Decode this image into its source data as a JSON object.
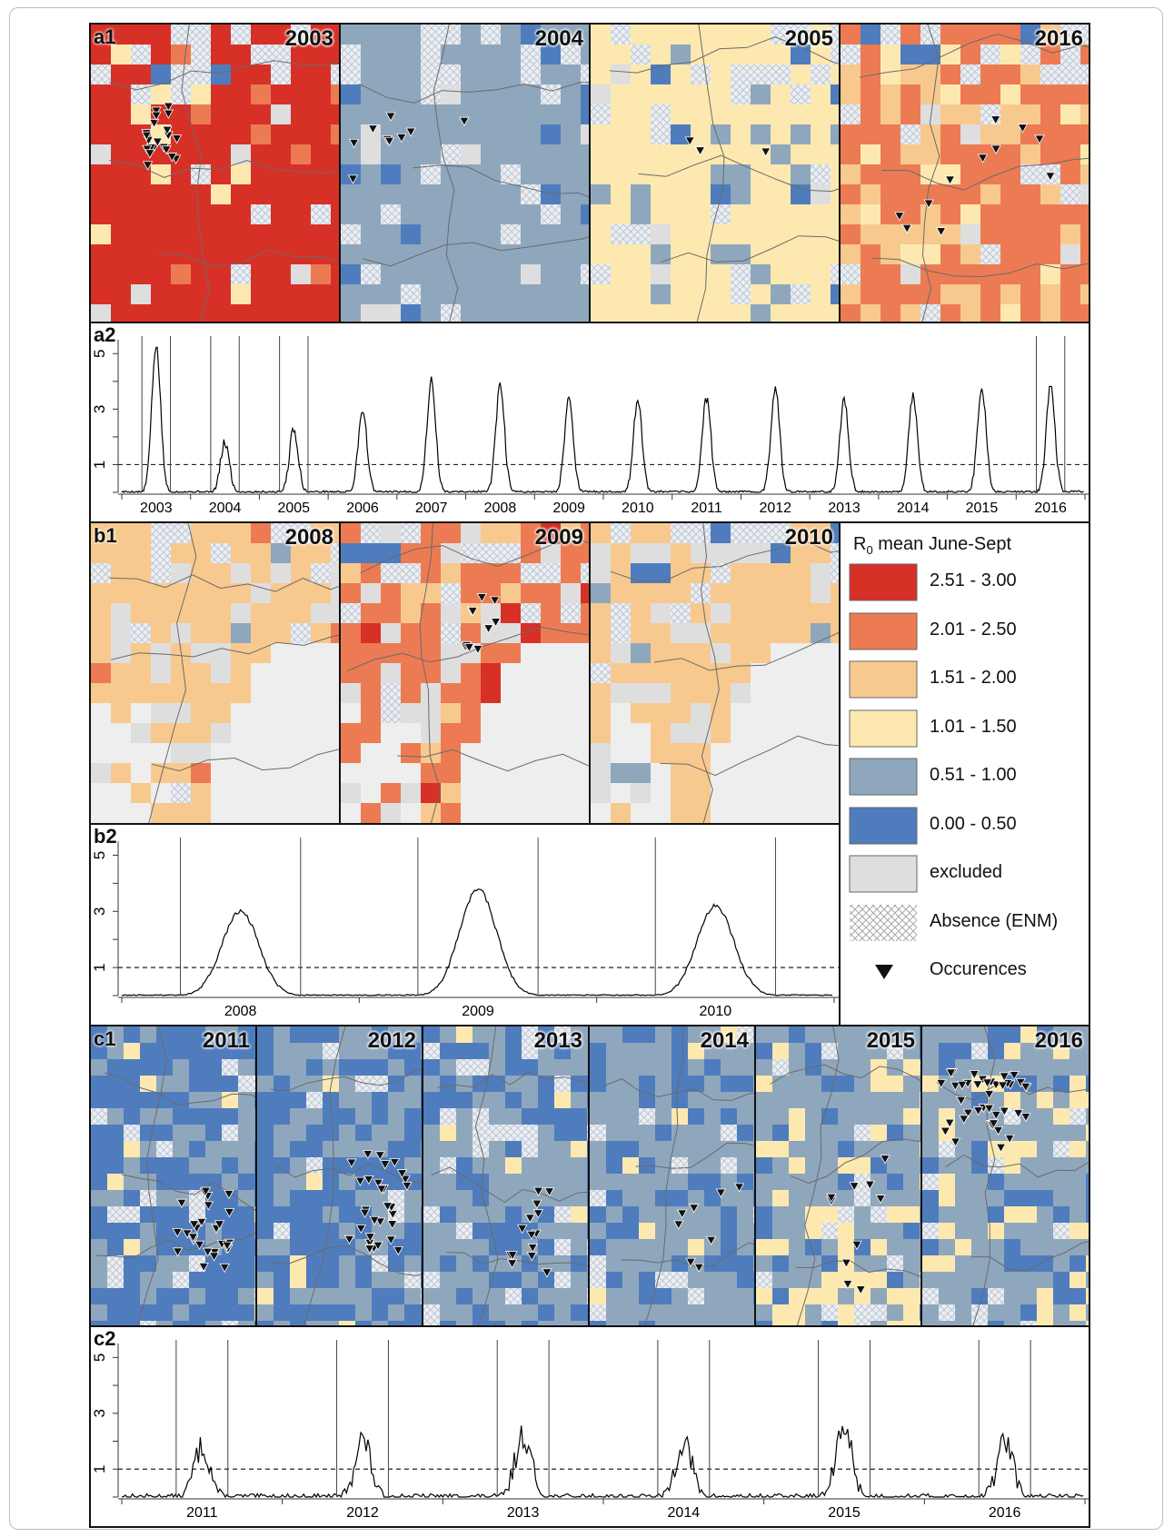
{
  "colors": {
    "c1": "#d73027",
    "c2": "#ec7b53",
    "c3": "#f8c98e",
    "c4": "#fde9b0",
    "c5": "#8fa7bd",
    "c6": "#4f7cbd",
    "excluded": "#dedede",
    "land": "#eeeeee",
    "sea": "#ffffff"
  },
  "panels": {
    "a1": {
      "label": "a1",
      "years": [
        "2003",
        "2004",
        "2005",
        "2016"
      ]
    },
    "a2": {
      "label": "a2"
    },
    "b1": {
      "label": "b1",
      "years": [
        "2008",
        "2009",
        "2010"
      ]
    },
    "b2": {
      "label": "b2"
    },
    "c1": {
      "label": "c1",
      "years": [
        "2011",
        "2012",
        "2013",
        "2014",
        "2015",
        "2016"
      ]
    },
    "c2": {
      "label": "c2"
    }
  },
  "legend": {
    "title_main": "R",
    "title_sub": "0",
    "title_rest": " mean June-Sept",
    "items": [
      {
        "label": "2.51 - 3.00",
        "color_key": "c1"
      },
      {
        "label": "2.01 - 2.50",
        "color_key": "c2"
      },
      {
        "label": "1.51 - 2.00",
        "color_key": "c3"
      },
      {
        "label": "1.01 - 1.50",
        "color_key": "c4"
      },
      {
        "label": "0.51 - 1.00",
        "color_key": "c5"
      },
      {
        "label": "0.00 - 0.50",
        "color_key": "c6"
      },
      {
        "label": "excluded",
        "color_key": "excluded"
      },
      {
        "label": "Absence (ENM)",
        "color_key": "hatch"
      },
      {
        "label": "Occurences",
        "color_key": "triangle"
      }
    ]
  },
  "chart_data": [
    {
      "type": "line",
      "panel": "a2",
      "x_tick_labels": [
        "2003",
        "2004",
        "2005",
        "2006",
        "2007",
        "2008",
        "2009",
        "2010",
        "2011",
        "2012",
        "2013",
        "2014",
        "2015",
        "2016"
      ],
      "y_tick_labels": [
        "1",
        "3",
        "5"
      ],
      "ylim": [
        0,
        5.5
      ],
      "threshold": 1,
      "seasonal_peaks": [
        5.3,
        1.8,
        2.3,
        3.0,
        4.0,
        3.8,
        3.4,
        3.3,
        3.4,
        3.8,
        3.3,
        3.5,
        3.8,
        3.8
      ],
      "map_window_years": [
        "2003",
        "2004",
        "2005",
        "2016"
      ]
    },
    {
      "type": "line",
      "panel": "b2",
      "x_tick_labels": [
        "2008",
        "2009",
        "2010"
      ],
      "y_tick_labels": [
        "1",
        "3",
        "5"
      ],
      "ylim": [
        0,
        5.5
      ],
      "threshold": 1,
      "seasonal_peaks": [
        3.0,
        3.8,
        3.2
      ],
      "map_window_years": [
        "2008",
        "2009",
        "2010"
      ]
    },
    {
      "type": "line",
      "panel": "c2",
      "x_tick_labels": [
        "2011",
        "2012",
        "2013",
        "2014",
        "2015",
        "2016"
      ],
      "y_tick_labels": [
        "1",
        "3",
        "5"
      ],
      "ylim": [
        0,
        5.5
      ],
      "threshold": 1,
      "seasonal_peaks": [
        1.8,
        2.1,
        2.2,
        2.0,
        2.5,
        2.0
      ],
      "map_window_years": [
        "2011",
        "2012",
        "2013",
        "2014",
        "2015",
        "2016"
      ]
    }
  ]
}
